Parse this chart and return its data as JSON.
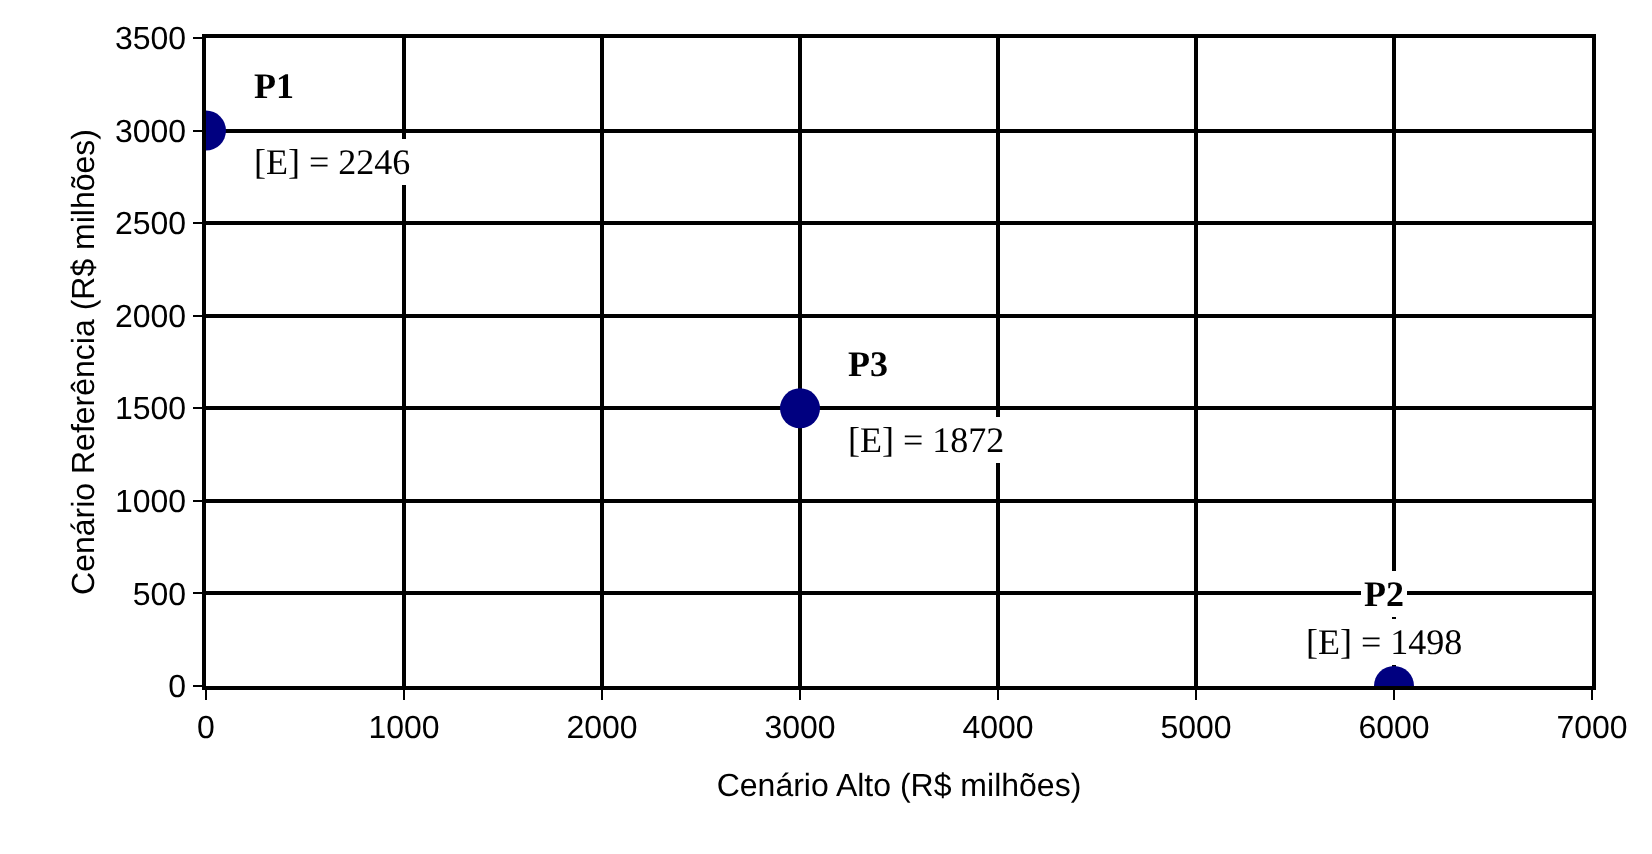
{
  "chart_data": {
    "type": "scatter",
    "xlabel": "Cenário Alto (R$ milhões)",
    "ylabel": "Cenário Referência (R$ milhões)",
    "x": [
      0,
      3000,
      6000
    ],
    "series": [
      {
        "color": "#000080",
        "values": [
          3000,
          1500,
          0
        ]
      }
    ],
    "xlim": [
      0,
      7000
    ],
    "xticks": [
      0,
      1000,
      2000,
      3000,
      4000,
      5000,
      6000,
      7000
    ],
    "ylim": [
      0,
      3500
    ],
    "yticks": [
      0,
      500,
      1000,
      1500,
      2000,
      2500,
      3000,
      3500
    ],
    "grid": true,
    "marker": "circle",
    "annotations": [
      {
        "text": "P1",
        "x": 0,
        "y": 3000
      },
      {
        "text": "[E] = 2246",
        "x": 0,
        "y": 3000
      },
      {
        "text": "P3",
        "x": 3000,
        "y": 1500
      },
      {
        "text": "[E] = 1872",
        "x": 3000,
        "y": 1500
      },
      {
        "text": "P2",
        "x": 6000,
        "y": 0
      },
      {
        "text": "[E] = 1498",
        "x": 6000,
        "y": 0
      }
    ]
  }
}
